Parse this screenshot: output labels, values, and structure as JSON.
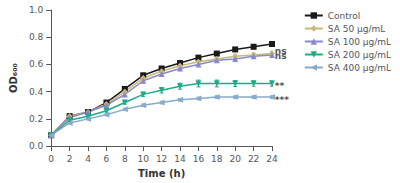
{
  "chart_data": {
    "type": "line",
    "x_label": "Time (h)",
    "y_label": "OD₆₀₀",
    "x": [
      0,
      2,
      4,
      6,
      8,
      10,
      12,
      14,
      16,
      18,
      20,
      22,
      24
    ],
    "series": [
      {
        "name": "Control",
        "color": "#1a1a1a",
        "marker": "square",
        "values": [
          0.08,
          0.22,
          0.25,
          0.32,
          0.42,
          0.52,
          0.57,
          0.61,
          0.65,
          0.68,
          0.71,
          0.73,
          0.75
        ],
        "errors": [
          0.005,
          0.01,
          0.01,
          0.01,
          0.012,
          0.015,
          0.015,
          0.015,
          0.015,
          0.015,
          0.015,
          0.015,
          0.018
        ]
      },
      {
        "name": "SA 50 μg/mL",
        "color": "#c8b87a",
        "marker": "diamond",
        "values": [
          0.08,
          0.22,
          0.25,
          0.31,
          0.4,
          0.5,
          0.55,
          0.59,
          0.62,
          0.64,
          0.66,
          0.67,
          0.68
        ],
        "errors": [
          0.005,
          0.01,
          0.01,
          0.01,
          0.012,
          0.015,
          0.015,
          0.015,
          0.015,
          0.015,
          0.015,
          0.015,
          0.018
        ]
      },
      {
        "name": "SA 100 μg/mL",
        "color": "#8888cc",
        "marker": "triangle_up",
        "values": [
          0.08,
          0.21,
          0.25,
          0.3,
          0.38,
          0.48,
          0.53,
          0.57,
          0.6,
          0.63,
          0.64,
          0.66,
          0.67
        ],
        "errors": [
          0.005,
          0.01,
          0.01,
          0.01,
          0.012,
          0.015,
          0.015,
          0.015,
          0.015,
          0.015,
          0.015,
          0.015,
          0.018
        ]
      },
      {
        "name": "SA 200 μg/mL",
        "color": "#22aa88",
        "marker": "triangle_down",
        "values": [
          0.08,
          0.19,
          0.22,
          0.26,
          0.32,
          0.38,
          0.41,
          0.44,
          0.46,
          0.46,
          0.46,
          0.46,
          0.46
        ],
        "errors": [
          0.005,
          0.01,
          0.01,
          0.01,
          0.012,
          0.015,
          0.02,
          0.022,
          0.025,
          0.025,
          0.022,
          0.02,
          0.02
        ]
      },
      {
        "name": "SA 400 μg/mL",
        "color": "#88aacc",
        "marker": "triangle_left",
        "values": [
          0.08,
          0.17,
          0.2,
          0.23,
          0.27,
          0.3,
          0.32,
          0.34,
          0.35,
          0.36,
          0.36,
          0.36,
          0.36
        ],
        "errors": [
          0.004,
          0.008,
          0.008,
          0.008,
          0.009,
          0.01,
          0.01,
          0.01,
          0.01,
          0.01,
          0.01,
          0.01,
          0.01
        ]
      }
    ],
    "xlim": [
      0,
      24
    ],
    "xticks": [
      0,
      2,
      4,
      6,
      8,
      10,
      12,
      14,
      16,
      18,
      20,
      22,
      24
    ],
    "ylim": [
      0.0,
      1.0
    ],
    "yticks": [
      {
        "value": 0,
        "label": "0.0"
      },
      0.2,
      0.4,
      0.6,
      0.8,
      {
        "value": 1,
        "label": "1.0"
      }
    ],
    "annotations": [
      {
        "text": "ns",
        "x": 24.3,
        "y": 0.7
      },
      {
        "text": "ns",
        "x": 24.3,
        "y": 0.66
      },
      {
        "text": "**",
        "x": 24.3,
        "y": 0.44
      },
      {
        "text": "***",
        "x": 24.3,
        "y": 0.34
      }
    ],
    "legend": "upper right",
    "grid": false
  }
}
